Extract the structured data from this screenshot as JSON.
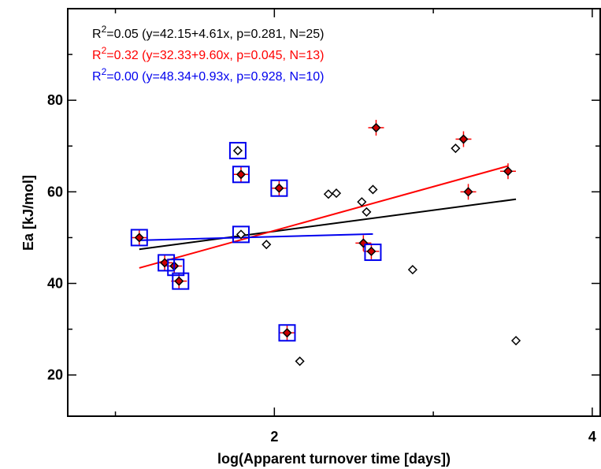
{
  "chart_data": {
    "type": "scatter",
    "xlabel": "log(Apparent turnover time [days])",
    "ylabel": "Ea [kJ/mol]",
    "xlim": [
      0.7,
      4.05
    ],
    "ylim": [
      11,
      100
    ],
    "x_ticks": [
      2,
      4
    ],
    "x_tick_labels": [
      "2",
      "4"
    ],
    "x_minor_ticks": [
      1,
      3
    ],
    "y_ticks": [
      20,
      40,
      60,
      80
    ],
    "y_tick_labels": [
      "20",
      "40",
      "60",
      "80"
    ],
    "y_minor_ticks": [
      30,
      50,
      70,
      90
    ],
    "grid": false,
    "colors": {
      "all": "#000000",
      "red": "#ff0000",
      "blue": "#0000ee",
      "marker_fill": "#cc0000"
    },
    "annotations": [
      {
        "prefix": "R",
        "sup": "2",
        "text": "=0.05 (y=42.15+4.61x, p=0.281, N=25)",
        "color": "#000000"
      },
      {
        "prefix": "R",
        "sup": "2",
        "text": "=0.32 (y=32.33+9.60x, p=0.045, N=13)",
        "color": "#ff0000"
      },
      {
        "prefix": "R",
        "sup": "2",
        "text": "=0.00 (y=48.34+0.93x, p=0.928, N=10)",
        "color": "#0000ee"
      }
    ],
    "series": [
      {
        "marker": "open-diamond",
        "color": "#000000",
        "points": [
          [
            1.77,
            69.0
          ],
          [
            1.79,
            50.7
          ],
          [
            1.95,
            48.5
          ],
          [
            2.16,
            23.0
          ],
          [
            2.34,
            59.5
          ],
          [
            2.39,
            59.7
          ],
          [
            2.55,
            57.8
          ],
          [
            2.58,
            55.6
          ],
          [
            2.62,
            60.5
          ],
          [
            2.87,
            43.0
          ],
          [
            3.14,
            69.5
          ],
          [
            3.52,
            27.5
          ]
        ]
      },
      {
        "marker": "red-diamond-cross",
        "color": "#ff0000",
        "points": [
          [
            1.15,
            50.0
          ],
          [
            1.31,
            44.5
          ],
          [
            1.37,
            43.8
          ],
          [
            1.4,
            40.5
          ],
          [
            1.79,
            63.8
          ],
          [
            2.03,
            60.8
          ],
          [
            2.08,
            29.2
          ],
          [
            2.56,
            48.8
          ],
          [
            2.61,
            47.0
          ],
          [
            2.64,
            74.0
          ],
          [
            3.19,
            71.5
          ],
          [
            3.22,
            60.0
          ],
          [
            3.47,
            64.5
          ]
        ]
      },
      {
        "marker": "blue-square",
        "color": "#0000ee",
        "points": [
          [
            1.15,
            50.0
          ],
          [
            1.32,
            44.5
          ],
          [
            1.38,
            43.5
          ],
          [
            1.41,
            40.5
          ],
          [
            1.77,
            69.0
          ],
          [
            1.79,
            63.8
          ],
          [
            1.79,
            50.7
          ],
          [
            2.03,
            60.8
          ],
          [
            2.08,
            29.2
          ],
          [
            2.62,
            46.8
          ]
        ]
      }
    ],
    "fit_lines": [
      {
        "color": "#000000",
        "x": [
          1.15,
          3.52
        ],
        "y": [
          47.45,
          58.38
        ]
      },
      {
        "color": "#ff0000",
        "x": [
          1.15,
          3.47
        ],
        "y": [
          43.37,
          65.64
        ]
      },
      {
        "color": "#0000ee",
        "x": [
          1.15,
          2.62
        ],
        "y": [
          49.41,
          50.78
        ]
      }
    ]
  }
}
